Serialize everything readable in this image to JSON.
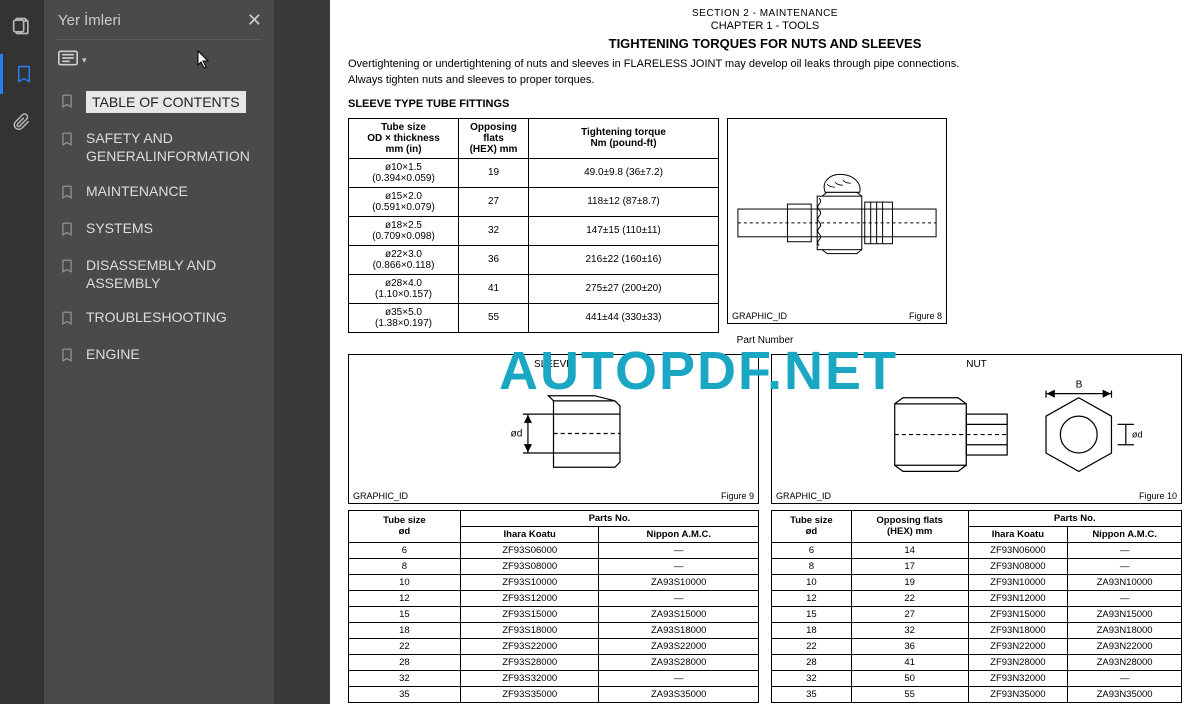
{
  "sidebar": {
    "title": "Yer İmleri",
    "close": "✕",
    "bookmarks": [
      "TABLE OF CONTENTS",
      "SAFETY AND GENERALINFORMATION",
      "MAINTENANCE",
      "SYSTEMS",
      "DISASSEMBLY AND ASSEMBLY",
      "TROUBLESHOOTING",
      "ENGINE"
    ]
  },
  "watermark": "AUTOPDF.NET",
  "doc": {
    "section": "SECTION 2 - MAINTENANCE",
    "chapter": "CHAPTER 1 - TOOLS",
    "title": "TIGHTENING TORQUES FOR NUTS AND SLEEVES",
    "para1": "Overtightening or undertightening of nuts and sleeves in FLARELESS JOINT may develop oil leaks through pipe connections.",
    "para2": "Always tighten nuts and sleeves to proper torques.",
    "subtitle": "SLEEVE TYPE TUBE FITTINGS",
    "torque": {
      "headers": [
        "Tube size\nOD × thickness\nmm (in)",
        "Opposing flats\n(HEX) mm",
        "Tightening torque\nNm (pound-ft)"
      ],
      "rows": [
        [
          "ø10×1.5\n(0.394×0.059)",
          "19",
          "49.0±9.8 (36±7.2)"
        ],
        [
          "ø15×2.0\n(0.591×0.079)",
          "27",
          "118±12 (87±8.7)"
        ],
        [
          "ø18×2.5\n(0.709×0.098)",
          "32",
          "147±15 (110±11)"
        ],
        [
          "ø22×3.0\n(0.866×0.118)",
          "36",
          "216±22 (160±16)"
        ],
        [
          "ø28×4.0\n(1.10×0.157)",
          "41",
          "275±27 (200±20)"
        ],
        [
          "ø35×5.0\n(1.38×0.197)",
          "55",
          "441±44 (330±33)"
        ]
      ]
    },
    "graphic_id": "GRAPHIC_ID",
    "fig8": "Figure 8",
    "fig9": "Figure 9",
    "fig10": "Figure 10",
    "part_number": "Part Number",
    "sleeve_label": "SLEEVE",
    "nut_label": "NUT",
    "od_label": "ød",
    "b_label": "B",
    "sleeve_parts": {
      "head1": "Tube size\nød",
      "head2": "Parts No.",
      "sub1": "Ihara Koatu",
      "sub2": "Nippon A.M.C.",
      "rows": [
        [
          "6",
          "ZF93S06000",
          "—"
        ],
        [
          "8",
          "ZF93S08000",
          "—"
        ],
        [
          "10",
          "ZF93S10000",
          "ZA93S10000"
        ],
        [
          "12",
          "ZF93S12000",
          "—"
        ],
        [
          "15",
          "ZF93S15000",
          "ZA93S15000"
        ],
        [
          "18",
          "ZF93S18000",
          "ZA93S18000"
        ],
        [
          "22",
          "ZF93S22000",
          "ZA93S22000"
        ],
        [
          "28",
          "ZF93S28000",
          "ZA93S28000"
        ],
        [
          "32",
          "ZF93S32000",
          "—"
        ],
        [
          "35",
          "ZF93S35000",
          "ZA93S35000"
        ]
      ]
    },
    "nut_parts": {
      "head1": "Tube size\nød",
      "head2": "Opposing flats\n(HEX) mm",
      "head3": "Parts No.",
      "sub1": "Ihara Koatu",
      "sub2": "Nippon A.M.C.",
      "rows": [
        [
          "6",
          "14",
          "ZF93N06000",
          "—"
        ],
        [
          "8",
          "17",
          "ZF93N08000",
          "—"
        ],
        [
          "10",
          "19",
          "ZF93N10000",
          "ZA93N10000"
        ],
        [
          "12",
          "22",
          "ZF93N12000",
          "—"
        ],
        [
          "15",
          "27",
          "ZF93N15000",
          "ZA93N15000"
        ],
        [
          "18",
          "32",
          "ZF93N18000",
          "ZA93N18000"
        ],
        [
          "22",
          "36",
          "ZF93N22000",
          "ZA93N22000"
        ],
        [
          "28",
          "41",
          "ZF93N28000",
          "ZA93N28000"
        ],
        [
          "32",
          "50",
          "ZF93N32000",
          "—"
        ],
        [
          "35",
          "55",
          "ZF93N35000",
          "ZA93N35000"
        ]
      ]
    }
  }
}
